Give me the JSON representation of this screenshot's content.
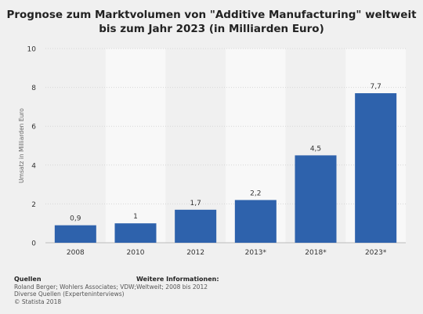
{
  "title_lines": [
    "Prognose zum Marktvolumen von \"Additive Manufacturing\" weltweit",
    "bis zum Jahr 2023 (in Milliarden Euro)"
  ],
  "chart_data": {
    "type": "bar",
    "title": "Prognose zum Marktvolumen von \"Additive Manufacturing\" weltweit bis zum Jahr 2023 (in Milliarden Euro)",
    "categories": [
      "2008",
      "2010",
      "2012",
      "2013*",
      "2018*",
      "2023*"
    ],
    "values": [
      0.9,
      1,
      1.7,
      2.2,
      4.5,
      7.7
    ],
    "value_labels": [
      "0,9",
      "1",
      "1,7",
      "2,2",
      "4,5",
      "7,7"
    ],
    "xlabel": "",
    "ylabel": "Umsatz in Milliarden Euro",
    "ylim": [
      0,
      10
    ],
    "yticks": [
      0,
      2,
      4,
      6,
      8,
      10
    ],
    "bar_color": "#2e62ac",
    "grid": true,
    "legend": "none"
  },
  "footer": {
    "sources_heading": "Quellen",
    "sources_lines": [
      "Roland Berger; Wohlers Associates; VDW;",
      "Diverse Quellen (Experteninterviews)",
      "© Statista 2018"
    ],
    "info_heading": "Weitere Informationen:",
    "info_lines": [
      "Weltweit; 2008 bis 2012"
    ]
  }
}
